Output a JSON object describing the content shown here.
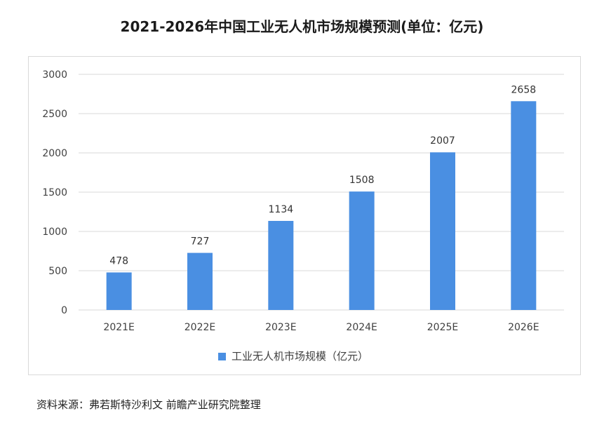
{
  "title": "2021-2026年中国工业无人机市场规模预测(单位：亿元)",
  "source_note": "资料来源：弗若斯特沙利文 前瞻产业研究院整理",
  "colors": {
    "bar": "#4a8fe2",
    "gridline": "#d9d9d9",
    "axis_text": "#404040",
    "label_text": "#333333"
  },
  "chart_data": {
    "type": "bar",
    "categories": [
      "2021E",
      "2022E",
      "2023E",
      "2024E",
      "2025E",
      "2026E"
    ],
    "series": [
      {
        "name": "工业无人机市场规模（亿元）",
        "values": [
          478,
          727,
          1134,
          1508,
          2007,
          2658
        ]
      }
    ],
    "ylim": [
      0,
      3000
    ],
    "yticks": [
      0,
      500,
      1000,
      1500,
      2000,
      2500,
      3000
    ],
    "grid": true,
    "legend_position": "bottom",
    "data_labels": true
  }
}
